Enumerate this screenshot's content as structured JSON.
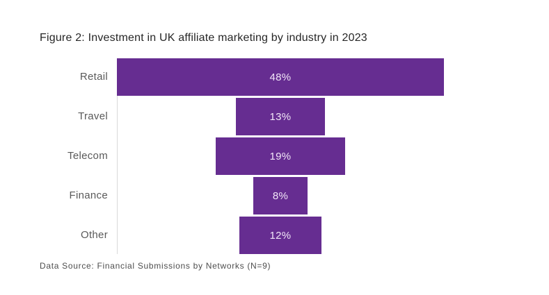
{
  "chart_data": {
    "type": "bar",
    "variant": "horizontal-centered-funnel",
    "title": "Figure 2: Investment in UK affiliate marketing by industry in 2023",
    "source_note": "Data Source: Financial Submissions by Networks (N=9)",
    "categories": [
      "Retail",
      "Travel",
      "Telecom",
      "Finance",
      "Other"
    ],
    "values": [
      48,
      13,
      19,
      8,
      12
    ],
    "value_labels": [
      "48%",
      "13%",
      "19%",
      "8%",
      "12%"
    ],
    "unit": "%",
    "xlabel": "",
    "ylabel": "",
    "legend": false,
    "grid": false,
    "axis_line": "vertical-left-only",
    "colors": {
      "bar_fill": "#662D91",
      "bar_value_text": "#F2E6F8",
      "category_label": "#595959",
      "title_text": "#262626",
      "source_text": "#4D4D4D",
      "axis_line": "#D9D9D9",
      "background": "#FFFFFF"
    }
  }
}
